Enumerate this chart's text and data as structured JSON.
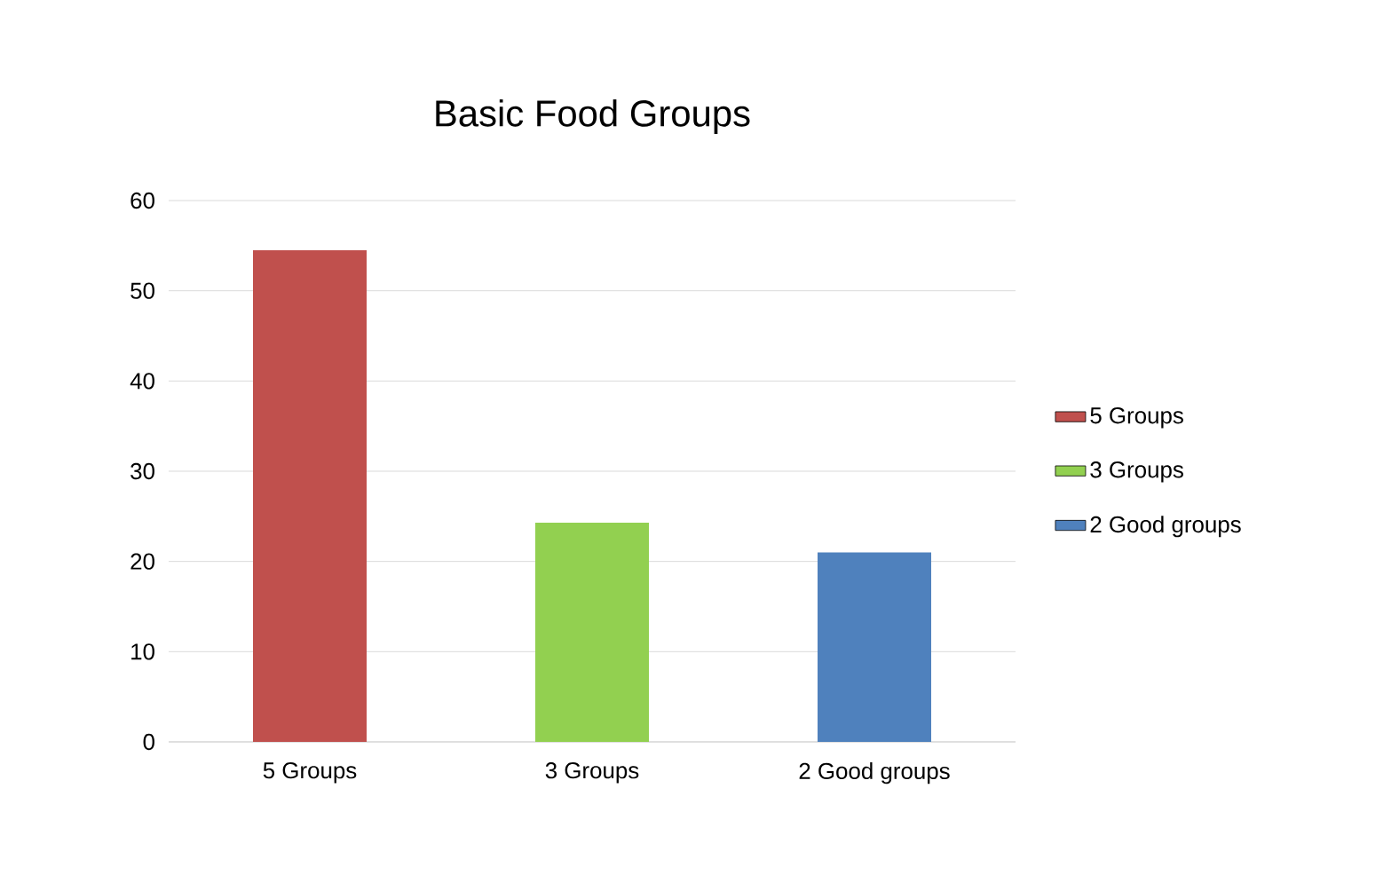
{
  "chart_data": {
    "type": "bar",
    "title": "Basic Food Groups",
    "categories": [
      "5 Groups",
      "3 Groups",
      "2 Good groups"
    ],
    "series": [
      {
        "name": "5 Groups",
        "color": "#c0504d",
        "values": [
          54.5,
          null,
          null
        ]
      },
      {
        "name": "3 Groups",
        "color": "#92d050",
        "values": [
          null,
          24.3,
          null
        ]
      },
      {
        "name": "2 Good groups",
        "color": "#4f81bd",
        "values": [
          null,
          null,
          21.0
        ]
      }
    ],
    "ylim": [
      0,
      60
    ],
    "yticks": [
      0,
      10,
      20,
      30,
      40,
      50,
      60
    ],
    "grid": "y",
    "legend": "right"
  }
}
